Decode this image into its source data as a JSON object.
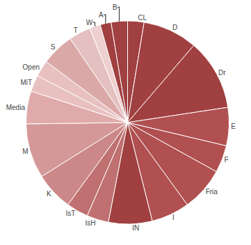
{
  "chart_data": {
    "type": "pie",
    "categories": [
      "CL",
      "D",
      "Dr",
      "E",
      "F",
      "Fria",
      "I",
      "IN",
      "IsH",
      "IsT",
      "K",
      "M",
      "Media",
      "MiT",
      "Open",
      "S",
      "T",
      "W",
      "A",
      "B"
    ],
    "values": [
      3,
      10,
      13,
      7,
      5,
      8,
      7,
      8,
      4,
      4,
      7,
      10,
      6,
      3,
      3,
      6,
      4,
      2,
      2,
      3
    ],
    "colors": [
      "#a04040",
      "#a04040",
      "#a04040",
      "#b05050",
      "#b05050",
      "#b05050",
      "#b05050",
      "#a04040",
      "#c07070",
      "#c07070",
      "#cc8888",
      "#d49898",
      "#e0aaaa",
      "#e8c0c0",
      "#e8c0c0",
      "#dba8a8",
      "#e4c0c0",
      "#eed0d0",
      "#a04040",
      "#a04040"
    ]
  }
}
